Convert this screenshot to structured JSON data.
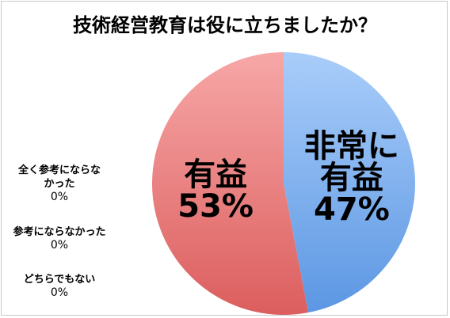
{
  "chart_data": {
    "type": "pie",
    "title": "技術経営教育は役に立ちましたか？",
    "slices": [
      {
        "label_line1": "非常に",
        "label_line2": "有益",
        "value": 47,
        "display": "47%",
        "color": "#7fb0f0"
      },
      {
        "label_line1": "有益",
        "label_line2": "",
        "value": 53,
        "display": "53%",
        "color": "#f08080"
      }
    ],
    "zero_items": [
      {
        "label_line1": "全く参考にならな",
        "label_line2": "かった",
        "display": "0%"
      },
      {
        "label_line1": "参考にならなかった",
        "label_line2": "",
        "display": "0%"
      },
      {
        "label_line1": "どちらでもない",
        "label_line2": "",
        "display": "0%"
      }
    ]
  }
}
